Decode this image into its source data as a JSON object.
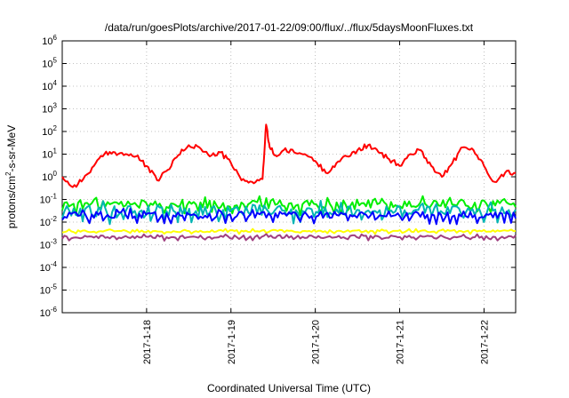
{
  "chart_data": {
    "type": "line",
    "title": "/data/run/goesPlots/archive/2017-01-22/09:00/flux/../flux/5daysMoonFluxes.txt",
    "xlabel": "Coordinated Universal Time (UTC)",
    "ylabel_prefix": "protons/cm",
    "ylabel_sup": "2",
    "ylabel_suffix": "-s-sr-MeV",
    "y_scale": "log",
    "ylim": [
      1e-06,
      1000000.0
    ],
    "xlim": [
      "2017-01-17 00:00",
      "2017-01-22 09:00"
    ],
    "grid": true,
    "legend": "none",
    "x_ticks": [
      {
        "label": "2017-1-18",
        "value": "2017-01-18"
      },
      {
        "label": "2017-1-19",
        "value": "2017-01-19"
      },
      {
        "label": "2017-1-20",
        "value": "2017-01-20"
      },
      {
        "label": "2017-1-21",
        "value": "2017-01-21"
      },
      {
        "label": "2017-1-22",
        "value": "2017-01-22"
      }
    ],
    "y_ticks": [
      {
        "base": "10",
        "exp": "-6",
        "value": 1e-06
      },
      {
        "base": "10",
        "exp": "-5",
        "value": 1e-05
      },
      {
        "base": "10",
        "exp": "-4",
        "value": 0.0001
      },
      {
        "base": "10",
        "exp": "-3",
        "value": 0.001
      },
      {
        "base": "10",
        "exp": "-2",
        "value": 0.01
      },
      {
        "base": "10",
        "exp": "-1",
        "value": 0.1
      },
      {
        "base": "10",
        "exp": "0",
        "value": 1
      },
      {
        "base": "10",
        "exp": "1",
        "value": 10
      },
      {
        "base": "10",
        "exp": "2",
        "value": 100
      },
      {
        "base": "10",
        "exp": "3",
        "value": 1000
      },
      {
        "base": "10",
        "exp": "4",
        "value": 10000
      },
      {
        "base": "10",
        "exp": "5",
        "value": 100000
      },
      {
        "base": "10",
        "exp": "6",
        "value": 1000000
      }
    ],
    "series": [
      {
        "color": "#ff0000",
        "x": [
          "2017-01-17 00:00",
          "2017-01-17 03:00",
          "2017-01-17 06:00",
          "2017-01-17 09:00",
          "2017-01-17 12:00",
          "2017-01-17 15:00",
          "2017-01-17 18:00",
          "2017-01-17 21:00",
          "2017-01-18 00:00",
          "2017-01-18 03:00",
          "2017-01-18 06:00",
          "2017-01-18 09:00",
          "2017-01-18 12:00",
          "2017-01-18 15:00",
          "2017-01-18 18:00",
          "2017-01-18 21:00",
          "2017-01-19 00:00",
          "2017-01-19 03:00",
          "2017-01-19 06:00",
          "2017-01-19 09:00",
          "2017-01-19 10:00",
          "2017-01-19 11:00",
          "2017-01-19 13:00",
          "2017-01-19 15:00",
          "2017-01-19 18:00",
          "2017-01-19 21:00",
          "2017-01-20 00:00",
          "2017-01-20 03:00",
          "2017-01-20 06:00",
          "2017-01-20 09:00",
          "2017-01-20 12:00",
          "2017-01-20 15:00",
          "2017-01-20 18:00",
          "2017-01-20 21:00",
          "2017-01-21 00:00",
          "2017-01-21 03:00",
          "2017-01-21 06:00",
          "2017-01-21 09:00",
          "2017-01-21 12:00",
          "2017-01-21 15:00",
          "2017-01-21 18:00",
          "2017-01-21 21:00",
          "2017-01-22 00:00",
          "2017-01-22 03:00",
          "2017-01-22 06:00",
          "2017-01-22 09:00"
        ],
        "y": [
          1,
          0.35,
          0.8,
          3,
          10,
          12,
          10,
          8,
          3,
          0.7,
          2,
          9,
          25,
          20,
          8,
          12,
          4,
          0.7,
          0.6,
          0.8,
          200,
          20,
          8,
          15,
          12,
          10,
          5,
          1.5,
          4,
          8,
          15,
          25,
          12,
          6,
          3,
          10,
          15,
          3,
          1,
          4,
          20,
          15,
          3,
          0.6,
          1.5,
          1.5
        ]
      },
      {
        "color": "#00ee00",
        "y_range": [
          0.02,
          0.15
        ]
      },
      {
        "color": "#00b4b4",
        "y_range": [
          0.008,
          0.09
        ]
      },
      {
        "color": "#0000ff",
        "y_range": [
          0.008,
          0.04
        ]
      },
      {
        "color": "#ffff00",
        "y_range": [
          0.003,
          0.005
        ]
      },
      {
        "color": "#a04080",
        "y_range": [
          0.0015,
          0.003
        ]
      }
    ]
  }
}
